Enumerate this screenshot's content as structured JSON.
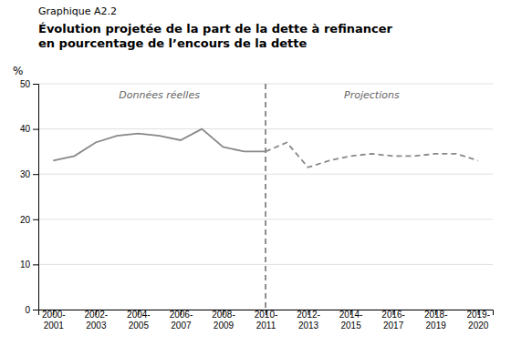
{
  "chart_data": {
    "type": "line",
    "subtitle": "Graphique A2.2",
    "title": "Évolution projetée de la part de la dette à refinancer\nen pourcentage de l’encours de la dette",
    "y_label": "%",
    "categories": [
      "2000-\n2001",
      null,
      "2002-\n2003",
      null,
      "2004-\n2005",
      null,
      "2006-\n2007",
      null,
      "2008-\n2009",
      null,
      "2010-\n2011",
      null,
      "2012-\n2013",
      null,
      "2014-\n2015",
      null,
      "2016-\n2017",
      null,
      "2018-\n2019",
      null,
      "2019-\n2020"
    ],
    "series": [
      {
        "color": "#888888",
        "line_style": "solid",
        "values": [
          33.0,
          34.0,
          37.0,
          38.5,
          39.0,
          38.5,
          37.5,
          40.0,
          36.0,
          35.0,
          35.0,
          null,
          null,
          null,
          null,
          null,
          null,
          null,
          null,
          null,
          null
        ]
      },
      {
        "color": "#888888",
        "line_style": "dashed",
        "values": [
          null,
          null,
          null,
          null,
          null,
          null,
          null,
          null,
          null,
          null,
          35.0,
          37.0,
          31.5,
          33.0,
          34.0,
          34.5,
          34.0,
          34.0,
          34.5,
          34.5,
          33.0
        ]
      }
    ],
    "vline": {
      "category": 10,
      "color": "#444444",
      "line_style": "dashed"
    },
    "annotations": [
      "Données réelles",
      "Projections"
    ],
    "ylim": [
      0,
      50
    ],
    "yticks": [
      0,
      10,
      20,
      30,
      40,
      50
    ],
    "grid": true
  }
}
